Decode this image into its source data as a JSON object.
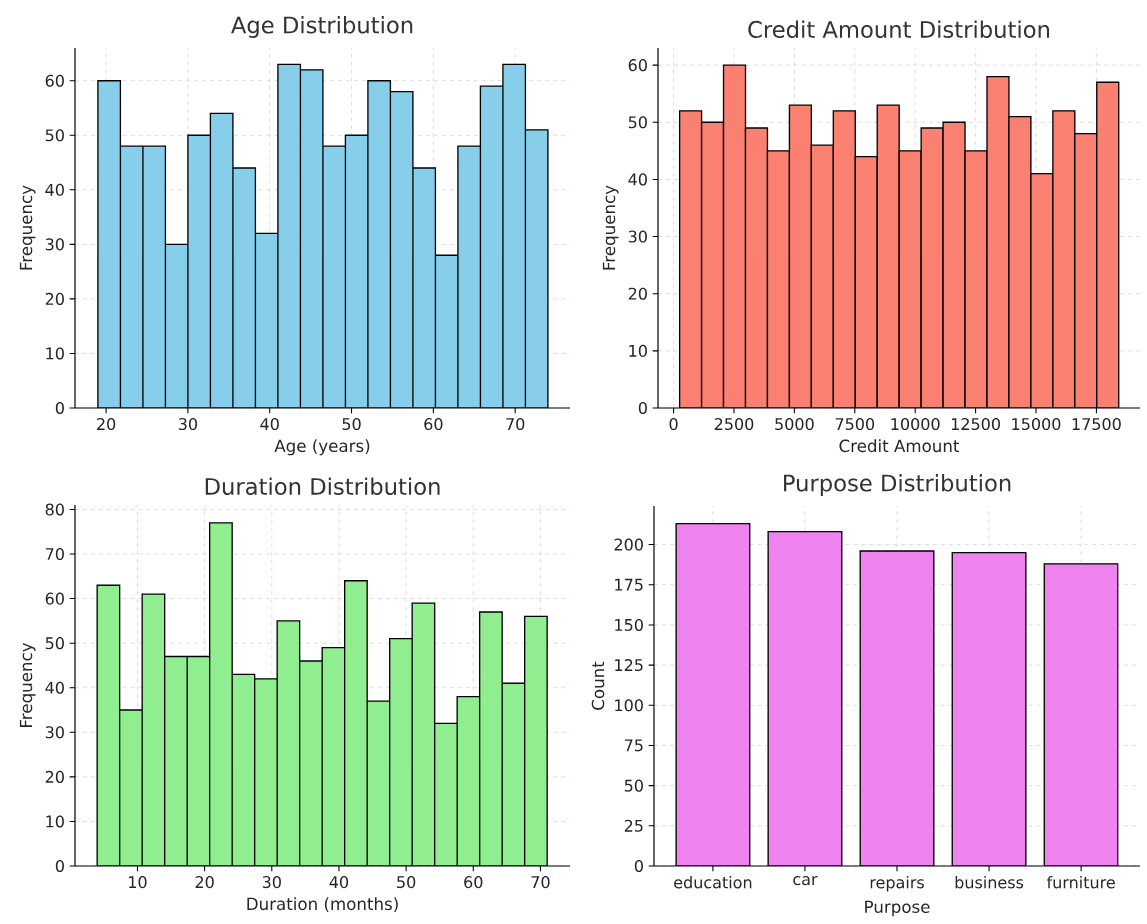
{
  "chart_data": [
    {
      "type": "histogram",
      "title": "Age Distribution",
      "xlabel": "Age (years)",
      "ylabel": "Frequency",
      "color": "#87ceeb",
      "grid": true,
      "bins": [
        19,
        21.75,
        24.5,
        27.25,
        30,
        32.75,
        35.5,
        38.25,
        41,
        43.75,
        46.5,
        49.25,
        52,
        54.75,
        57.5,
        60.25,
        63,
        65.75,
        68.5,
        71.25,
        74
      ],
      "values": [
        60,
        48,
        48,
        30,
        50,
        54,
        44,
        32,
        63,
        62,
        48,
        50,
        60,
        58,
        44,
        28,
        48,
        59,
        63,
        51
      ],
      "xlim": [
        16.2,
        76.7
      ],
      "xticks": [
        20,
        30,
        40,
        50,
        60,
        70
      ],
      "ylim": [
        0,
        66
      ],
      "yticks": [
        0,
        10,
        20,
        30,
        40,
        50,
        60
      ]
    },
    {
      "type": "histogram",
      "title": "Credit Amount Distribution",
      "xlabel": "Credit Amount",
      "ylabel": "Frequency",
      "color": "#fa8072",
      "grid": true,
      "bins": [
        250,
        1159,
        2067,
        2976,
        3885,
        4794,
        5702,
        6611,
        7520,
        8428,
        9337,
        10246,
        11154,
        12063,
        12972,
        13880,
        14789,
        15698,
        16607,
        17515,
        18424
      ],
      "values": [
        52,
        50,
        60,
        49,
        45,
        53,
        46,
        52,
        44,
        53,
        45,
        49,
        50,
        45,
        58,
        51,
        41,
        52,
        48,
        57
      ],
      "xlim": [
        -645,
        19305
      ],
      "xticks": [
        0,
        2500,
        5000,
        7500,
        10000,
        12500,
        15000,
        17500
      ],
      "ylim": [
        0,
        63
      ],
      "yticks": [
        0,
        10,
        20,
        30,
        40,
        50,
        60
      ]
    },
    {
      "type": "histogram",
      "title": "Duration Distribution",
      "xlabel": "Duration (months)",
      "ylabel": "Frequency",
      "color": "#90ee90",
      "grid": true,
      "bins": [
        4,
        7.35,
        10.7,
        14.05,
        17.4,
        20.75,
        24.1,
        27.45,
        30.8,
        34.15,
        37.5,
        40.85,
        44.2,
        47.55,
        50.9,
        54.25,
        57.6,
        60.95,
        64.3,
        67.65,
        71
      ],
      "values": [
        63,
        35,
        61,
        47,
        47,
        77,
        43,
        42,
        55,
        46,
        49,
        64,
        37,
        51,
        59,
        32,
        38,
        57,
        41,
        56
      ],
      "xlim": [
        0.7,
        74.4
      ],
      "xticks": [
        10,
        20,
        30,
        40,
        50,
        60,
        70
      ],
      "ylim": [
        0,
        81
      ],
      "yticks": [
        0,
        10,
        20,
        30,
        40,
        50,
        60,
        70,
        80
      ]
    },
    {
      "type": "bar",
      "title": "Purpose Distribution",
      "xlabel": "Purpose",
      "ylabel": "Count",
      "color": "#ee82ee",
      "grid": true,
      "categories": [
        "education",
        "car",
        "repairs",
        "business",
        "furniture"
      ],
      "values": [
        213,
        208,
        196,
        195,
        188
      ],
      "ylim": [
        0,
        224
      ],
      "yticks": [
        0,
        25,
        50,
        75,
        100,
        125,
        150,
        175,
        200
      ]
    }
  ]
}
